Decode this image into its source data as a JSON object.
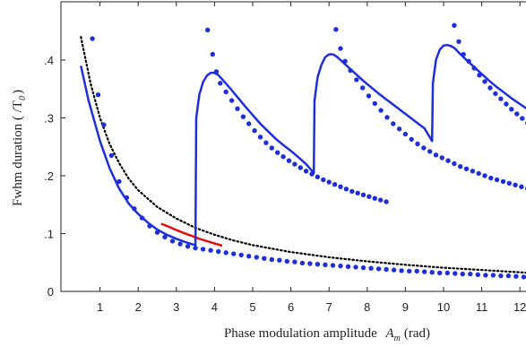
{
  "chart_data": {
    "type": "line",
    "xlabel": "Phase modulation amplitude",
    "xlabel_symbol": "A",
    "xlabel_subscript": "m",
    "xlabel_unit": "(rad)",
    "ylabel": "Fwhm duration ( /T",
    "ylabel_subscript": "0",
    "ylabel_close": ")",
    "xlim": [
      0.5,
      12.5
    ],
    "ylim": [
      0,
      0.47
    ],
    "xticks": [
      1,
      2,
      3,
      4,
      5,
      6,
      7,
      8,
      9,
      10,
      11,
      12
    ],
    "yticks": [
      0,
      0.1,
      0.2,
      0.3,
      0.4
    ],
    "ytick_labels": [
      "0",
      ".1",
      ".2",
      ".3",
      ".4"
    ],
    "grid": false,
    "colors": {
      "blue": "#1f2fd8",
      "red": "#e01010",
      "black": "#000000"
    },
    "series": [
      {
        "style": "black-dotted",
        "x": [
          0.5,
          0.75,
          1,
          1.25,
          1.5,
          1.75,
          2,
          2.5,
          3,
          3.5,
          4,
          4.5,
          5,
          6,
          7,
          8,
          9,
          10,
          11,
          12,
          12.5
        ],
        "y": [
          0.44,
          0.36,
          0.3,
          0.255,
          0.222,
          0.195,
          0.175,
          0.146,
          0.126,
          0.11,
          0.098,
          0.088,
          0.08,
          0.068,
          0.059,
          0.052,
          0.046,
          0.041,
          0.037,
          0.033,
          0.031
        ]
      },
      {
        "style": "red-solid",
        "x": [
          2.6,
          2.8,
          3.0,
          3.2,
          3.4,
          3.6,
          3.8,
          4.0,
          4.2
        ],
        "y": [
          0.117,
          0.112,
          0.106,
          0.101,
          0.096,
          0.091,
          0.087,
          0.083,
          0.079
        ]
      },
      {
        "style": "blue-solid",
        "x": [
          0.5,
          0.7,
          1,
          1.25,
          1.5,
          1.75,
          2,
          2.25,
          2.5,
          2.75,
          3,
          3.25,
          3.5,
          3.52,
          3.6,
          3.7,
          3.8,
          3.9,
          4.0,
          4.1,
          4.2,
          4.4,
          4.6,
          4.8,
          5.0,
          5.2,
          5.4,
          5.6,
          5.8,
          6.0,
          6.2,
          6.4,
          6.6,
          6.62,
          6.7,
          6.8,
          6.9,
          7.0,
          7.1,
          7.2,
          7.3,
          7.5,
          7.7,
          7.9,
          8.1,
          8.3,
          8.5,
          8.7,
          8.9,
          9.1,
          9.3,
          9.5,
          9.7,
          9.72,
          9.8,
          9.9,
          10.0,
          10.1,
          10.2,
          10.3,
          10.4,
          10.6,
          10.8,
          11.0,
          11.2,
          11.4,
          11.6,
          11.8,
          12.0,
          12.2,
          12.5
        ],
        "y": [
          0.39,
          0.33,
          0.26,
          0.213,
          0.178,
          0.152,
          0.134,
          0.119,
          0.107,
          0.098,
          0.091,
          0.085,
          0.08,
          0.3,
          0.34,
          0.362,
          0.373,
          0.378,
          0.378,
          0.374,
          0.367,
          0.352,
          0.336,
          0.32,
          0.305,
          0.29,
          0.277,
          0.264,
          0.253,
          0.243,
          0.232,
          0.22,
          0.205,
          0.33,
          0.37,
          0.392,
          0.405,
          0.41,
          0.41,
          0.406,
          0.4,
          0.388,
          0.376,
          0.364,
          0.353,
          0.342,
          0.332,
          0.322,
          0.312,
          0.302,
          0.292,
          0.282,
          0.26,
          0.36,
          0.4,
          0.418,
          0.425,
          0.426,
          0.424,
          0.42,
          0.413,
          0.4,
          0.388,
          0.376,
          0.364,
          0.353,
          0.343,
          0.333,
          0.324,
          0.315,
          0.305
        ]
      },
      {
        "style": "blue-dots",
        "x": [
          0.8,
          0.95,
          1.1,
          1.3,
          1.5,
          1.7,
          1.9,
          2.1,
          2.3,
          2.5,
          2.7,
          2.9,
          3.1,
          3.3,
          3.5,
          3.7,
          3.9,
          4.1,
          4.3,
          4.5,
          4.7,
          4.9,
          5.1,
          5.3,
          5.5,
          5.7,
          5.9,
          6.1,
          6.3,
          6.5,
          6.7,
          6.9,
          7.1,
          7.3,
          7.5,
          7.7,
          7.9,
          8.1,
          8.3,
          8.5,
          8.7,
          8.9,
          9.1,
          9.3,
          9.5,
          9.7,
          9.9,
          10.1,
          10.3,
          10.5,
          10.7,
          10.9,
          11.1,
          11.3,
          11.5,
          11.7,
          11.9,
          12.1,
          12.3,
          12.5
        ],
        "y": [
          0.437,
          0.34,
          0.288,
          0.235,
          0.19,
          0.162,
          0.143,
          0.127,
          0.113,
          0.102,
          0.094,
          0.087,
          0.082,
          0.078,
          0.075,
          0.073,
          0.071,
          0.069,
          0.067,
          0.065,
          0.063,
          0.061,
          0.059,
          0.057,
          0.055,
          0.054,
          0.052,
          0.051,
          0.049,
          0.048,
          0.047,
          0.046,
          0.045,
          0.044,
          0.043,
          0.042,
          0.041,
          0.04,
          0.039,
          0.038,
          0.037,
          0.036,
          0.035,
          0.035,
          0.034,
          0.033,
          0.032,
          0.032,
          0.031,
          0.03,
          0.03,
          0.029,
          0.028,
          0.028,
          0.027,
          0.027,
          0.026,
          0.025,
          0.025,
          0.024
        ]
      },
      {
        "style": "blue-dots",
        "x": [
          3.82,
          3.95,
          4.05,
          4.15,
          4.3,
          4.45,
          4.6,
          4.75,
          4.9,
          5.05,
          5.2,
          5.35,
          5.5,
          5.65,
          5.8,
          5.95,
          6.1,
          6.25,
          6.4,
          6.55,
          6.7,
          6.85,
          7.0,
          7.15,
          7.3,
          7.45,
          7.6,
          7.75,
          7.9,
          8.05,
          8.2,
          8.35,
          8.5
        ],
        "y": [
          0.452,
          0.41,
          0.38,
          0.36,
          0.345,
          0.33,
          0.316,
          0.302,
          0.29,
          0.278,
          0.267,
          0.257,
          0.248,
          0.24,
          0.233,
          0.226,
          0.22,
          0.214,
          0.208,
          0.203,
          0.198,
          0.193,
          0.189,
          0.185,
          0.181,
          0.177,
          0.173,
          0.17,
          0.167,
          0.164,
          0.161,
          0.158,
          0.155
        ]
      },
      {
        "style": "blue-dots",
        "x": [
          7.18,
          7.3,
          7.42,
          7.56,
          7.72,
          7.88,
          8.04,
          8.2,
          8.36,
          8.52,
          8.68,
          8.84,
          9.0,
          9.16,
          9.32,
          9.48,
          9.64,
          9.8,
          9.96,
          10.12,
          10.28,
          10.44,
          10.6,
          10.76,
          10.92,
          11.08,
          11.24,
          11.4,
          11.56,
          11.72,
          11.88,
          12.04,
          12.2,
          12.36,
          12.5
        ],
        "y": [
          0.453,
          0.42,
          0.398,
          0.382,
          0.366,
          0.352,
          0.338,
          0.325,
          0.313,
          0.301,
          0.29,
          0.281,
          0.272,
          0.263,
          0.255,
          0.248,
          0.242,
          0.236,
          0.231,
          0.226,
          0.221,
          0.216,
          0.212,
          0.208,
          0.204,
          0.2,
          0.196,
          0.193,
          0.19,
          0.187,
          0.184,
          0.181,
          0.178,
          0.175,
          0.172
        ]
      },
      {
        "style": "blue-dots",
        "x": [
          10.28,
          10.4,
          10.52,
          10.66,
          10.8,
          10.94,
          11.08,
          11.22,
          11.36,
          11.5,
          11.64,
          11.78,
          11.92,
          12.06,
          12.2,
          12.34,
          12.5
        ],
        "y": [
          0.46,
          0.432,
          0.41,
          0.398,
          0.386,
          0.374,
          0.363,
          0.352,
          0.342,
          0.333,
          0.324,
          0.315,
          0.307,
          0.299,
          0.291,
          0.284,
          0.277
        ]
      }
    ]
  }
}
